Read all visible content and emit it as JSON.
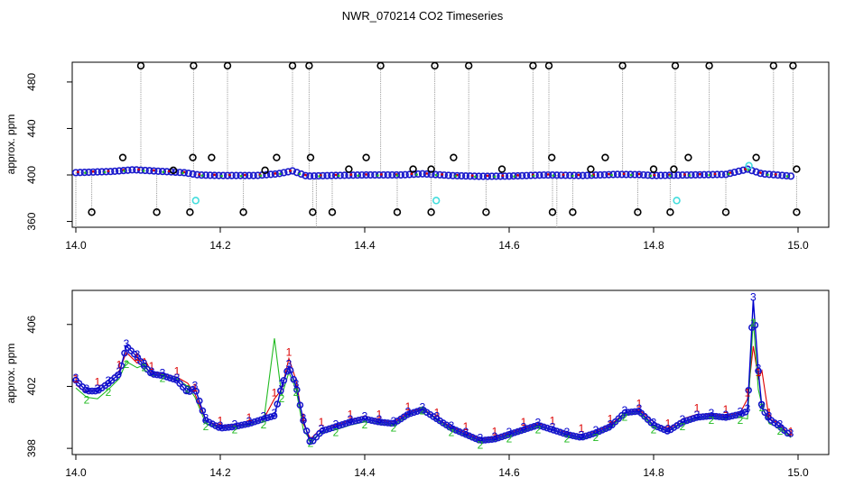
{
  "title": "NWR_070214  CO2 Timeseries",
  "colors": {
    "trace": "#0000cc",
    "point_blue": "#1a1acc",
    "point_cyan": "#44dddd",
    "outlier": "#000000",
    "spike_line": "#9a9a9a",
    "series_1": "#dd0000",
    "series_2": "#22bb22",
    "series_3": "#0000cc"
  },
  "chart_data": [
    {
      "type": "scatter",
      "ylabel": "approx. ppm",
      "xlim": [
        14.0,
        15.0
      ],
      "ylim": [
        355,
        497
      ],
      "xticks": [
        "14.0",
        "14.2",
        "14.4",
        "14.6",
        "14.8",
        "15.0"
      ],
      "yticks": [
        "360",
        "400",
        "440",
        "480"
      ],
      "baseline": [
        [
          14.0,
          402
        ],
        [
          14.05,
          403
        ],
        [
          14.08,
          404.5
        ],
        [
          14.12,
          403
        ],
        [
          14.15,
          402
        ],
        [
          14.17,
          400
        ],
        [
          14.2,
          399.5
        ],
        [
          14.25,
          399.5
        ],
        [
          14.28,
          401
        ],
        [
          14.3,
          403.5
        ],
        [
          14.32,
          399
        ],
        [
          14.35,
          399.5
        ],
        [
          14.4,
          400
        ],
        [
          14.45,
          400
        ],
        [
          14.48,
          401
        ],
        [
          14.52,
          399.5
        ],
        [
          14.56,
          398.8
        ],
        [
          14.6,
          399
        ],
        [
          14.65,
          400
        ],
        [
          14.7,
          399.5
        ],
        [
          14.75,
          400.5
        ],
        [
          14.78,
          400.3
        ],
        [
          14.8,
          399.5
        ],
        [
          14.85,
          400
        ],
        [
          14.9,
          400.5
        ],
        [
          14.93,
          405
        ],
        [
          14.95,
          401
        ],
        [
          14.99,
          399
        ]
      ],
      "outliers_high": [
        14.09,
        14.163,
        14.21,
        14.3,
        14.323,
        14.422,
        14.497,
        14.544,
        14.633,
        14.655,
        14.757,
        14.83,
        14.877,
        14.966,
        14.993
      ],
      "outliers_high_value": 494,
      "outliers_low": [
        14.022,
        14.112,
        14.158,
        14.232,
        14.328,
        14.355,
        14.445,
        14.492,
        14.568,
        14.66,
        14.688,
        14.778,
        14.823,
        14.9,
        14.998
      ],
      "outliers_low_value": 368,
      "outliers_mid": [
        14.065,
        14.135,
        14.162,
        14.188,
        14.262,
        14.278,
        14.325,
        14.378,
        14.402,
        14.467,
        14.492,
        14.523,
        14.59,
        14.659,
        14.713,
        14.733,
        14.8,
        14.828,
        14.848,
        14.942,
        14.998
      ],
      "outliers_mid_value": [
        415,
        404,
        415,
        415,
        404,
        415,
        415,
        405,
        415,
        405,
        405,
        415,
        405,
        415,
        405,
        415,
        405,
        405,
        415,
        415,
        405
      ],
      "cyan_points": [
        [
          14.166,
          378
        ],
        [
          14.499,
          378
        ],
        [
          14.832,
          378
        ],
        [
          14.932,
          408
        ]
      ]
    },
    {
      "type": "line",
      "ylabel": "approx. ppm",
      "xlim": [
        14.0,
        15.0
      ],
      "ylim": [
        397.6,
        408.2
      ],
      "xticks": [
        "14.0",
        "14.2",
        "14.4",
        "14.6",
        "14.8",
        "15.0"
      ],
      "yticks": [
        "398",
        "402",
        "406"
      ],
      "series": [
        {
          "name": "1",
          "values": [
            [
              14.0,
              402.1
            ],
            [
              14.015,
              401.6
            ],
            [
              14.03,
              401.9
            ],
            [
              14.045,
              402.4
            ],
            [
              14.06,
              403.0
            ],
            [
              14.07,
              404.2
            ],
            [
              14.085,
              403.5
            ],
            [
              14.095,
              403.8
            ],
            [
              14.105,
              402.9
            ],
            [
              14.12,
              402.8
            ],
            [
              14.14,
              402.6
            ],
            [
              14.155,
              402.2
            ],
            [
              14.165,
              401.5
            ],
            [
              14.18,
              399.8
            ],
            [
              14.2,
              399.4
            ],
            [
              14.22,
              399.5
            ],
            [
              14.24,
              399.6
            ],
            [
              14.26,
              399.9
            ],
            [
              14.275,
              401.2
            ],
            [
              14.285,
              401.8
            ],
            [
              14.295,
              403.8
            ],
            [
              14.305,
              402.4
            ],
            [
              14.315,
              399.6
            ],
            [
              14.325,
              398.6
            ],
            [
              14.34,
              399.3
            ],
            [
              14.36,
              399.5
            ],
            [
              14.38,
              399.8
            ],
            [
              14.4,
              400.1
            ],
            [
              14.42,
              399.8
            ],
            [
              14.44,
              399.7
            ],
            [
              14.46,
              400.3
            ],
            [
              14.48,
              400.6
            ],
            [
              14.5,
              399.9
            ],
            [
              14.52,
              399.4
            ],
            [
              14.54,
              399.0
            ],
            [
              14.56,
              398.6
            ],
            [
              14.58,
              398.7
            ],
            [
              14.6,
              399.0
            ],
            [
              14.62,
              399.3
            ],
            [
              14.64,
              399.6
            ],
            [
              14.66,
              399.4
            ],
            [
              14.68,
              399.0
            ],
            [
              14.7,
              398.9
            ],
            [
              14.72,
              399.1
            ],
            [
              14.74,
              399.5
            ],
            [
              14.76,
              400.3
            ],
            [
              14.78,
              400.5
            ],
            [
              14.8,
              399.7
            ],
            [
              14.82,
              399.2
            ],
            [
              14.84,
              399.9
            ],
            [
              14.86,
              400.2
            ],
            [
              14.88,
              400.2
            ],
            [
              14.9,
              400.1
            ],
            [
              14.92,
              400.3
            ],
            [
              14.93,
              401.2
            ],
            [
              14.938,
              404.6
            ],
            [
              14.945,
              402.5
            ],
            [
              14.95,
              403.0
            ],
            [
              14.96,
              399.9
            ],
            [
              14.975,
              399.6
            ],
            [
              14.99,
              398.7
            ]
          ]
        },
        {
          "name": "2",
          "values": [
            [
              14.0,
              401.9
            ],
            [
              14.015,
              401.3
            ],
            [
              14.03,
              401.2
            ],
            [
              14.045,
              401.8
            ],
            [
              14.06,
              402.5
            ],
            [
              14.07,
              403.6
            ],
            [
              14.085,
              403.2
            ],
            [
              14.095,
              403.4
            ],
            [
              14.105,
              402.7
            ],
            [
              14.12,
              402.7
            ],
            [
              14.14,
              402.5
            ],
            [
              14.155,
              402.0
            ],
            [
              14.165,
              401.3
            ],
            [
              14.18,
              399.6
            ],
            [
              14.2,
              399.3
            ],
            [
              14.22,
              399.4
            ],
            [
              14.24,
              399.5
            ],
            [
              14.26,
              399.7
            ],
            [
              14.275,
              405.1
            ],
            [
              14.285,
              401.4
            ],
            [
              14.295,
              402.9
            ],
            [
              14.305,
              401.8
            ],
            [
              14.315,
              399.2
            ],
            [
              14.325,
              398.5
            ],
            [
              14.34,
              399.0
            ],
            [
              14.36,
              399.2
            ],
            [
              14.38,
              399.5
            ],
            [
              14.4,
              399.7
            ],
            [
              14.42,
              399.6
            ],
            [
              14.44,
              399.5
            ],
            [
              14.46,
              400.1
            ],
            [
              14.48,
              400.6
            ],
            [
              14.5,
              399.8
            ],
            [
              14.52,
              399.2
            ],
            [
              14.54,
              398.8
            ],
            [
              14.56,
              398.4
            ],
            [
              14.58,
              398.5
            ],
            [
              14.6,
              398.8
            ],
            [
              14.62,
              399.1
            ],
            [
              14.64,
              399.4
            ],
            [
              14.66,
              399.2
            ],
            [
              14.68,
              398.8
            ],
            [
              14.7,
              398.6
            ],
            [
              14.72,
              398.9
            ],
            [
              14.74,
              399.3
            ],
            [
              14.76,
              400.2
            ],
            [
              14.78,
              400.3
            ],
            [
              14.8,
              399.4
            ],
            [
              14.82,
              399.1
            ],
            [
              14.84,
              399.6
            ],
            [
              14.86,
              399.9
            ],
            [
              14.88,
              400.0
            ],
            [
              14.9,
              399.9
            ],
            [
              14.92,
              400.0
            ],
            [
              14.93,
              399.9
            ],
            [
              14.938,
              406.3
            ],
            [
              14.945,
              401.8
            ],
            [
              14.95,
              400.8
            ],
            [
              14.96,
              399.6
            ],
            [
              14.975,
              399.3
            ],
            [
              14.99,
              398.7
            ]
          ]
        },
        {
          "name": "3",
          "values": [
            [
              14.0,
              402.4
            ],
            [
              14.015,
              401.7
            ],
            [
              14.03,
              401.7
            ],
            [
              14.045,
              402.2
            ],
            [
              14.06,
              402.8
            ],
            [
              14.07,
              404.6
            ],
            [
              14.085,
              403.9
            ],
            [
              14.095,
              403.3
            ],
            [
              14.105,
              402.8
            ],
            [
              14.12,
              402.7
            ],
            [
              14.14,
              402.4
            ],
            [
              14.155,
              401.6
            ],
            [
              14.165,
              401.9
            ],
            [
              14.18,
              399.8
            ],
            [
              14.2,
              399.3
            ],
            [
              14.22,
              399.4
            ],
            [
              14.24,
              399.6
            ],
            [
              14.26,
              399.9
            ],
            [
              14.275,
              400.1
            ],
            [
              14.285,
              402.0
            ],
            [
              14.295,
              403.3
            ],
            [
              14.305,
              402.0
            ],
            [
              14.315,
              399.8
            ],
            [
              14.325,
              398.3
            ],
            [
              14.34,
              399.1
            ],
            [
              14.36,
              399.4
            ],
            [
              14.38,
              399.7
            ],
            [
              14.4,
              399.9
            ],
            [
              14.42,
              399.7
            ],
            [
              14.44,
              399.6
            ],
            [
              14.46,
              400.2
            ],
            [
              14.48,
              400.5
            ],
            [
              14.5,
              399.9
            ],
            [
              14.52,
              399.3
            ],
            [
              14.54,
              398.9
            ],
            [
              14.56,
              398.5
            ],
            [
              14.58,
              398.6
            ],
            [
              14.6,
              398.9
            ],
            [
              14.62,
              399.2
            ],
            [
              14.64,
              399.5
            ],
            [
              14.66,
              399.2
            ],
            [
              14.68,
              398.9
            ],
            [
              14.7,
              398.7
            ],
            [
              14.72,
              399.0
            ],
            [
              14.74,
              399.4
            ],
            [
              14.76,
              400.3
            ],
            [
              14.78,
              400.4
            ],
            [
              14.8,
              399.5
            ],
            [
              14.82,
              399.1
            ],
            [
              14.84,
              399.7
            ],
            [
              14.86,
              400.0
            ],
            [
              14.88,
              400.1
            ],
            [
              14.9,
              400.0
            ],
            [
              14.92,
              400.2
            ],
            [
              14.93,
              400.4
            ],
            [
              14.938,
              407.6
            ],
            [
              14.945,
              403.0
            ],
            [
              14.95,
              400.6
            ],
            [
              14.96,
              399.9
            ],
            [
              14.975,
              399.4
            ],
            [
              14.99,
              398.8
            ]
          ]
        }
      ]
    }
  ]
}
